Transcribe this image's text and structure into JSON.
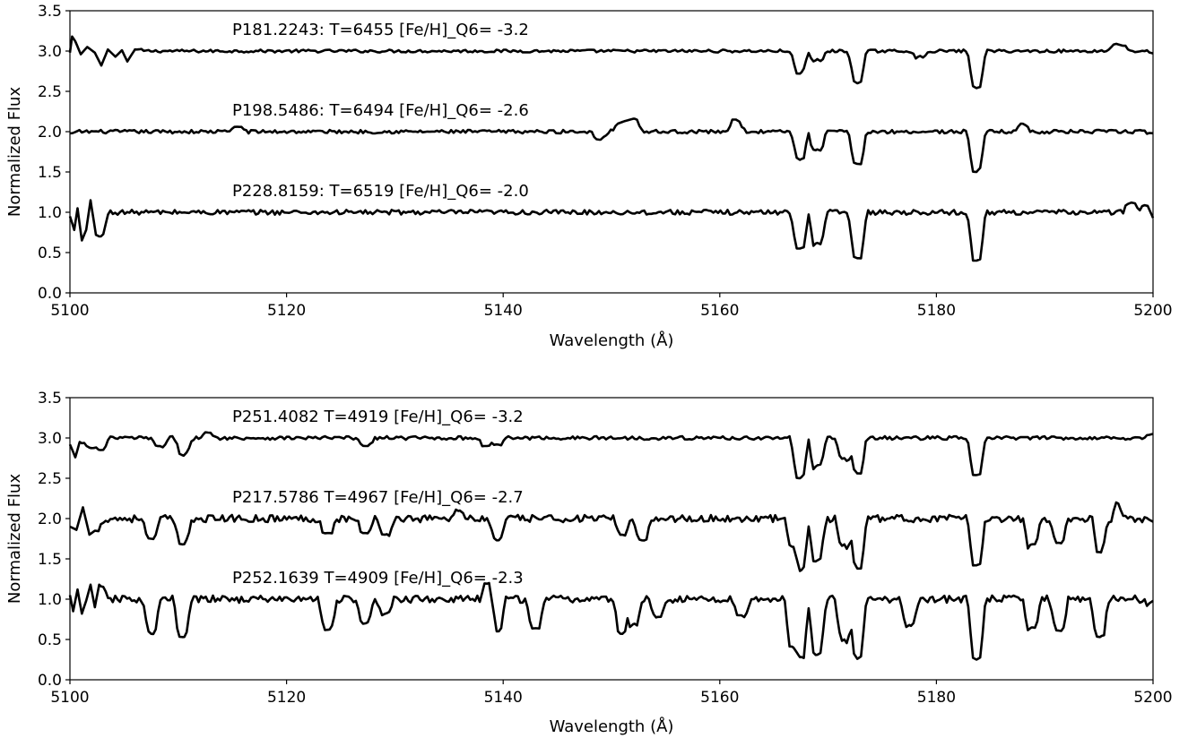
{
  "chart_data": [
    {
      "type": "line",
      "xlabel": "Wavelength (Å)",
      "ylabel": "Normalized Flux",
      "xlim": [
        5100,
        5200
      ],
      "ylim": [
        0.0,
        3.5
      ],
      "x_ticks": [
        5100,
        5120,
        5140,
        5160,
        5180,
        5200
      ],
      "x_tick_labels": [
        "5100",
        "5120",
        "5140",
        "5160",
        "5180",
        "5200"
      ],
      "y_ticks": [
        0.0,
        0.5,
        1.0,
        1.5,
        2.0,
        2.5,
        3.0,
        3.5
      ],
      "y_tick_labels": [
        "0.0",
        "0.5",
        "1.0",
        "1.5",
        "2.0",
        "2.5",
        "3.0",
        "3.5"
      ],
      "grid": false,
      "series": [
        {
          "name": "P181.2243: T=6455  [Fe/H]_Q6= -3.2",
          "offset": 3.0,
          "noise": 0.018,
          "x": [
            5100,
            5100.2,
            5100.5,
            5101.0,
            5101.6,
            5102.3,
            5102.9,
            5103.5,
            5104.2,
            5104.8,
            5105.3,
            5106.0,
            5167.4,
            5169.0,
            5172.7,
            5178.5,
            5183.7,
            5196.6,
            5197.1,
            5200
          ],
          "y": [
            2.98,
            3.18,
            3.12,
            2.96,
            3.05,
            2.98,
            2.82,
            3.02,
            2.93,
            3.01,
            2.87,
            3.02,
            2.72,
            2.9,
            2.6,
            2.94,
            2.54,
            3.09,
            3.07,
            2.97
          ]
        },
        {
          "name": "P198.5486: T=6494  [Fe/H]_Q6= -2.6",
          "offset": 2.0,
          "noise": 0.022,
          "x": [
            5100,
            5115.5,
            5149.0,
            5150.6,
            5151.2,
            5152.0,
            5161.5,
            5167.4,
            5169.0,
            5172.7,
            5183.7,
            5187.8,
            5200
          ],
          "y": [
            1.98,
            2.06,
            1.9,
            2.1,
            2.13,
            2.16,
            2.15,
            1.65,
            1.78,
            1.6,
            1.5,
            2.1,
            1.98
          ]
        },
        {
          "name": "P228.8159: T=6519  [Fe/H]_Q6= -2.0",
          "offset": 1.0,
          "noise": 0.03,
          "x": [
            5100,
            5100.4,
            5100.7,
            5101.1,
            5101.5,
            5101.9,
            5102.4,
            5102.7,
            5167.4,
            5169.0,
            5172.7,
            5183.7,
            5198.0,
            5199.5,
            5200
          ],
          "y": [
            0.95,
            0.78,
            1.05,
            0.65,
            0.78,
            1.15,
            0.72,
            0.7,
            0.55,
            0.62,
            0.43,
            0.4,
            1.12,
            1.08,
            0.93
          ]
        },
        {
          "name": "P251.4082  T=4919  [Fe/H]_Q6= -3.2",
          "offset": 3.0,
          "noise": 0.022,
          "x": [
            5100,
            5100.5,
            5100.9,
            5101.8,
            5102.8,
            5108.3,
            5110.5,
            5112.5,
            5127.3,
            5138.5,
            5139.4,
            5167.4,
            5169.0,
            5171.5,
            5172.7,
            5183.7,
            5200
          ],
          "y": [
            2.92,
            2.76,
            2.95,
            2.88,
            2.85,
            2.9,
            2.78,
            3.07,
            2.9,
            2.9,
            2.92,
            2.5,
            2.66,
            2.75,
            2.56,
            2.54,
            3.05
          ]
        },
        {
          "name": "P217.5786  T=4967  [Fe/H]_Q6= -2.7",
          "offset": 2.0,
          "noise": 0.045,
          "x": [
            5100,
            5100.6,
            5101.2,
            5101.8,
            5102.3,
            5107.5,
            5110.4,
            5123.8,
            5127.3,
            5129.1,
            5136.0,
            5139.4,
            5151.0,
            5152.8,
            5166.8,
            5167.4,
            5169.0,
            5171.5,
            5172.7,
            5183.7,
            5188.8,
            5191.3,
            5195.2,
            5196.6,
            5200
          ],
          "y": [
            1.9,
            1.86,
            2.14,
            1.8,
            1.85,
            1.75,
            1.68,
            1.82,
            1.82,
            1.8,
            2.1,
            1.73,
            1.8,
            1.73,
            1.65,
            1.35,
            1.48,
            1.68,
            1.38,
            1.42,
            1.68,
            1.7,
            1.58,
            2.2,
            1.96
          ]
        },
        {
          "name": "P252.1639  T=4909  [Fe/H]_Q6= -2.3",
          "offset": 1.0,
          "noise": 0.045,
          "x": [
            5100,
            5100.3,
            5100.7,
            5101.1,
            5101.5,
            5101.9,
            5102.3,
            5102.7,
            5107.5,
            5110.4,
            5123.8,
            5127.3,
            5129.1,
            5138.7,
            5139.4,
            5143.0,
            5151.0,
            5152.0,
            5154.3,
            5162.0,
            5166.8,
            5167.4,
            5169.0,
            5171.5,
            5172.7,
            5177.5,
            5183.7,
            5188.8,
            5191.3,
            5195.1,
            5200
          ],
          "y": [
            1.05,
            0.85,
            1.12,
            0.82,
            0.98,
            1.18,
            0.9,
            1.18,
            0.57,
            0.53,
            0.62,
            0.7,
            0.82,
            1.2,
            0.6,
            0.64,
            0.57,
            0.69,
            0.78,
            0.8,
            0.4,
            0.28,
            0.31,
            0.5,
            0.26,
            0.68,
            0.25,
            0.65,
            0.61,
            0.53,
            0.98
          ]
        }
      ],
      "panels": [
        {
          "series": [
            0,
            1,
            2
          ]
        },
        {
          "series": [
            3,
            4,
            5
          ]
        }
      ]
    }
  ]
}
